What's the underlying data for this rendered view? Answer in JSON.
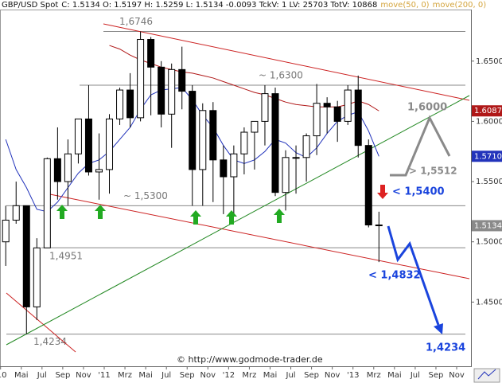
{
  "chart_data": {
    "type": "candlestick",
    "title": "GBP/USD Spot",
    "info": "C: 1.5134 O: 1.5197 H: 1.5259 L: 1.5134 -0.0093 TckV: 1 LV: 25703 TotV: 10868",
    "x": [
      "2010-03",
      "2010-04",
      "2010-05",
      "2010-06",
      "2010-07",
      "2010-08",
      "2010-09",
      "2010-10",
      "2010-11",
      "2010-12",
      "2011-01",
      "2011-02",
      "2011-03",
      "2011-04",
      "2011-05",
      "2011-06",
      "2011-07",
      "2011-08",
      "2011-09",
      "2011-10",
      "2011-11",
      "2011-12",
      "2012-01",
      "2012-02",
      "2012-03",
      "2012-04",
      "2012-05",
      "2012-06",
      "2012-07",
      "2012-08",
      "2012-09",
      "2012-10",
      "2012-11",
      "2012-12",
      "2013-01",
      "2013-02",
      "2013-03"
    ],
    "open": [
      1.5,
      1.518,
      1.53,
      1.446,
      1.495,
      1.569,
      1.55,
      1.573,
      1.602,
      1.558,
      1.56,
      1.602,
      1.626,
      1.603,
      1.668,
      1.645,
      1.606,
      1.643,
      1.625,
      1.56,
      1.609,
      1.568,
      1.554,
      1.573,
      1.591,
      1.6,
      1.623,
      1.541,
      1.57,
      1.57,
      1.588,
      1.615,
      1.612,
      1.6,
      1.626,
      1.58,
      1.514
    ],
    "high": [
      1.53,
      1.55,
      1.53,
      1.503,
      1.57,
      1.595,
      1.585,
      1.6,
      1.63,
      1.59,
      1.606,
      1.628,
      1.64,
      1.6746,
      1.67,
      1.65,
      1.648,
      1.662,
      1.63,
      1.615,
      1.616,
      1.58,
      1.58,
      1.595,
      1.6,
      1.63,
      1.628,
      1.576,
      1.58,
      1.59,
      1.631,
      1.62,
      1.617,
      1.63,
      1.638,
      1.585,
      1.525
    ],
    "low": [
      1.48,
      1.515,
      1.4234,
      1.435,
      1.495,
      1.535,
      1.53,
      1.565,
      1.555,
      1.535,
      1.54,
      1.597,
      1.595,
      1.6,
      1.605,
      1.595,
      1.578,
      1.61,
      1.53,
      1.53,
      1.533,
      1.523,
      1.523,
      1.556,
      1.56,
      1.58,
      1.538,
      1.526,
      1.54,
      1.55,
      1.572,
      1.59,
      1.583,
      1.597,
      1.57,
      1.512,
      1.4832
    ],
    "close": [
      1.518,
      1.53,
      1.446,
      1.495,
      1.569,
      1.55,
      1.573,
      1.602,
      1.558,
      1.56,
      1.602,
      1.626,
      1.603,
      1.668,
      1.645,
      1.606,
      1.643,
      1.625,
      1.56,
      1.609,
      1.568,
      1.554,
      1.573,
      1.591,
      1.6,
      1.623,
      1.541,
      1.57,
      1.57,
      1.588,
      1.615,
      1.612,
      1.6,
      1.626,
      1.58,
      1.514,
      1.5134
    ],
    "last": {
      "value": 1.5134,
      "label": "1.5134",
      "color": "#8a8a8a"
    },
    "up_color": "#ffffff",
    "down_color": "#000000",
    "series": [
      {
        "name": "move(50, 0)",
        "color": "#2233bb",
        "label_color": "#d4a43c",
        "values": [
          1.585,
          1.56,
          1.545,
          1.527,
          1.525,
          1.533,
          1.545,
          1.557,
          1.565,
          1.568,
          1.575,
          1.585,
          1.595,
          1.61,
          1.622,
          1.626,
          1.627,
          1.628,
          1.618,
          1.605,
          1.595,
          1.58,
          1.568,
          1.565,
          1.568,
          1.575,
          1.585,
          1.582,
          1.574,
          1.57,
          1.578,
          1.59,
          1.6,
          1.605,
          1.608,
          1.592,
          1.571
        ],
        "last": {
          "value": 1.571,
          "label": "1.5710"
        }
      },
      {
        "name": "move(200, 0)",
        "color": "#b01818",
        "label_color": "#d4a43c",
        "values": [
          null,
          null,
          null,
          null,
          null,
          null,
          null,
          null,
          null,
          null,
          1.663,
          1.66,
          1.655,
          1.651,
          1.648,
          1.645,
          1.643,
          1.641,
          1.64,
          1.638,
          1.636,
          1.633,
          1.63,
          1.627,
          1.624,
          1.622,
          1.619,
          1.616,
          1.614,
          1.613,
          1.612,
          1.612,
          1.612,
          1.614,
          1.617,
          1.614,
          1.6087
        ],
        "last": {
          "value": 1.6087,
          "label": "1.6087"
        }
      }
    ],
    "xticks": [
      {
        "value": "2010-03",
        "label": "'10"
      },
      {
        "value": "2010-05",
        "label": "Mai"
      },
      {
        "value": "2010-07",
        "label": "Jul"
      },
      {
        "value": "2010-09",
        "label": "Sep"
      },
      {
        "value": "2010-11",
        "label": "Nov"
      },
      {
        "value": "2011-01",
        "label": "'11"
      },
      {
        "value": "2011-03",
        "label": "Mrz"
      },
      {
        "value": "2011-05",
        "label": "Mai"
      },
      {
        "value": "2011-07",
        "label": "Jul"
      },
      {
        "value": "2011-09",
        "label": "Sep"
      },
      {
        "value": "2011-11",
        "label": "Nov"
      },
      {
        "value": "2012-01",
        "label": "'12"
      },
      {
        "value": "2012-03",
        "label": "Mrz"
      },
      {
        "value": "2012-05",
        "label": "Mai"
      },
      {
        "value": "2012-07",
        "label": "Jul"
      },
      {
        "value": "2012-09",
        "label": "Sep"
      },
      {
        "value": "2012-11",
        "label": "Nov"
      },
      {
        "value": "2013-01",
        "label": "'13"
      },
      {
        "value": "2013-03",
        "label": "Mrz"
      },
      {
        "value": "2013-05",
        "label": "Mai"
      },
      {
        "value": "2013-07",
        "label": "Jul"
      },
      {
        "value": "2013-09",
        "label": "Sep"
      },
      {
        "value": "2013-11",
        "label": "Nov"
      }
    ],
    "ylim": [
      1.3967,
      1.6928
    ],
    "yticks": [
      {
        "value": 1.45,
        "label": "1.4500"
      },
      {
        "value": 1.5,
        "label": "1.5000"
      },
      {
        "value": 1.55,
        "label": "1.5500"
      },
      {
        "value": 1.6,
        "label": "1.6000"
      },
      {
        "value": 1.65,
        "label": "1.6500"
      }
    ],
    "levels": [
      {
        "value": 1.6746,
        "label": "1,6746"
      },
      {
        "value": 1.63,
        "label": "~ 1,6300"
      },
      {
        "value": 1.53,
        "label": "~ 1,5300"
      },
      {
        "value": 1.4951,
        "label": "1,4951"
      },
      {
        "value": 1.4234,
        "label": "1,4234"
      }
    ],
    "annotations": [
      "1,6000",
      "> 1,5512",
      "< 1,5400",
      "< 1,4832",
      "1,4234",
      "© http://www.godmode-trader.de"
    ]
  }
}
